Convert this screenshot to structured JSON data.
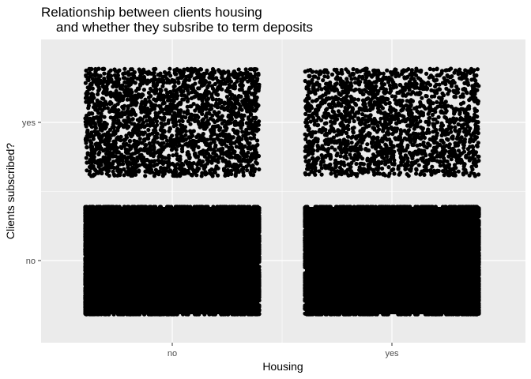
{
  "chart_data": {
    "type": "scatter",
    "title_lines": [
      "Relationship between clients housing",
      "    and whether they subsribe to term deposits"
    ],
    "xlabel": "Housing",
    "ylabel": "Clients subscribed?",
    "x_categories": [
      "no",
      "yes"
    ],
    "y_categories": [
      "no",
      "yes"
    ],
    "jitter": true,
    "grid": true,
    "legend": "none",
    "point_color": "#000000",
    "panel_background": "#ebebeb",
    "grid_color": "#ffffff",
    "groups": [
      {
        "x": "no",
        "y": "no",
        "count": 20000
      },
      {
        "x": "no",
        "y": "yes",
        "count": 2300
      },
      {
        "x": "yes",
        "y": "no",
        "count": 20000
      },
      {
        "x": "yes",
        "y": "yes",
        "count": 1900
      }
    ]
  }
}
